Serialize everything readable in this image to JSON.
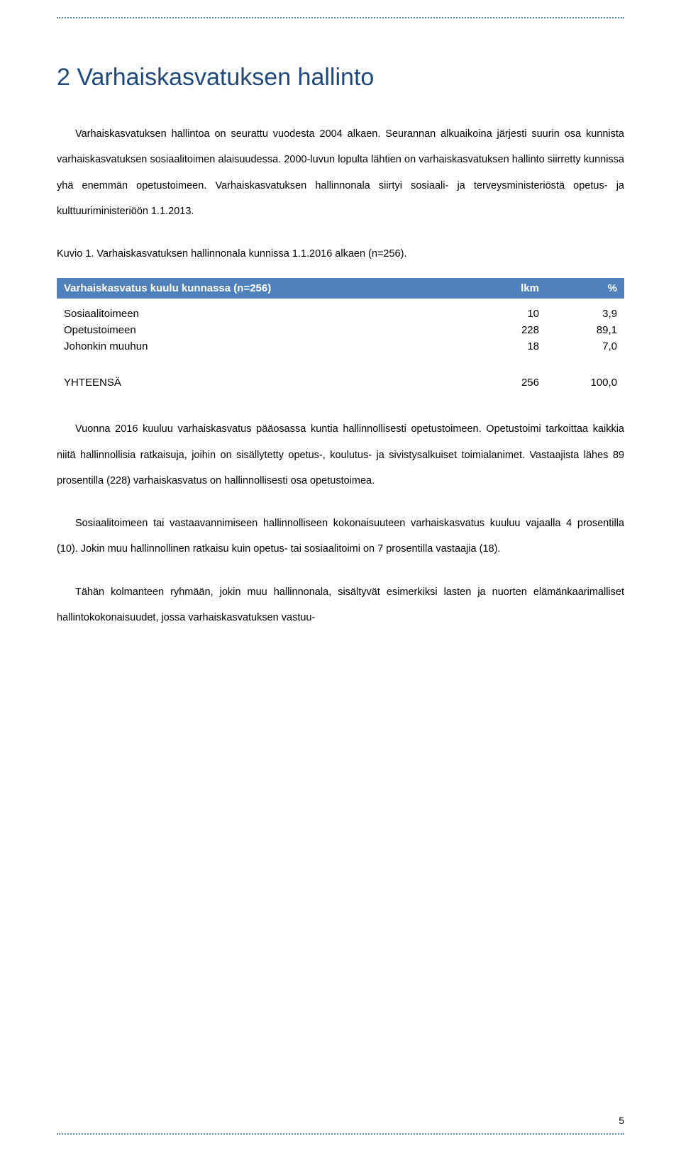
{
  "heading": "2  Varhaiskasvatuksen hallinto",
  "para1": "Varhaiskasvatuksen hallintoa on seurattu vuodesta 2004 alkaen. Seurannan alkuaikoina järjesti suurin osa kunnista varhaiskasvatuksen sosiaalitoimen alaisuudessa. 2000-luvun lopulta lähtien on varhaiskasvatuksen hallinto siirretty kunnissa yhä enemmän opetustoimeen. Varhaiskasvatuksen hallinnonala siirtyi sosiaali- ja terveysministeriöstä opetus- ja kulttuuriministeriöön 1.1.2013.",
  "caption": "Kuvio 1. Varhaiskasvatuksen hallinnonala kunnissa 1.1.2016 alkaen (n=256).",
  "table": {
    "header": {
      "label": "Varhaiskasvatus kuulu kunnassa (n=256)",
      "col_lkm": "lkm",
      "col_pct": "%"
    },
    "rows": [
      {
        "label": "Sosiaalitoimeen",
        "lkm": "10",
        "pct": "3,9"
      },
      {
        "label": "Opetustoimeen",
        "lkm": "228",
        "pct": "89,1"
      },
      {
        "label": "Johonkin muuhun",
        "lkm": "18",
        "pct": "7,0"
      }
    ],
    "total": {
      "label": "YHTEENSÄ",
      "lkm": "256",
      "pct": "100,0"
    },
    "header_bg": "#4f81bd",
    "header_fg": "#ffffff"
  },
  "para2": "Vuonna 2016 kuuluu varhaiskasvatus pääosassa kuntia hallinnollisesti opetustoimeen. Opetustoimi tarkoittaa kaikkia niitä hallinnollisia ratkaisuja, joihin on sisällytetty opetus-, koulutus- ja sivistysalkuiset toimialanimet. Vastaajista lähes 89 prosentilla (228) varhaiskasvatus on hallinnollisesti osa opetustoimea.",
  "para3": "Sosiaalitoimeen tai vastaavannimiseen hallinnolliseen kokonaisuuteen varhaiskasvatus kuuluu vajaalla 4 prosentilla (10). Jokin muu hallinnollinen ratkaisu kuin opetus- tai sosiaalitoimi on 7 prosentilla vastaajia (18).",
  "para4": "Tähän kolmanteen ryhmään, jokin muu hallinnonala, sisältyvät esimerkiksi lasten ja nuorten elämänkaarimalliset hallintokokonaisuudet, jossa varhaiskasvatuksen vastuu-",
  "page_number": "5",
  "colors": {
    "heading": "#1f497d",
    "dotted_border": "#4f81bd",
    "text": "#000000"
  }
}
